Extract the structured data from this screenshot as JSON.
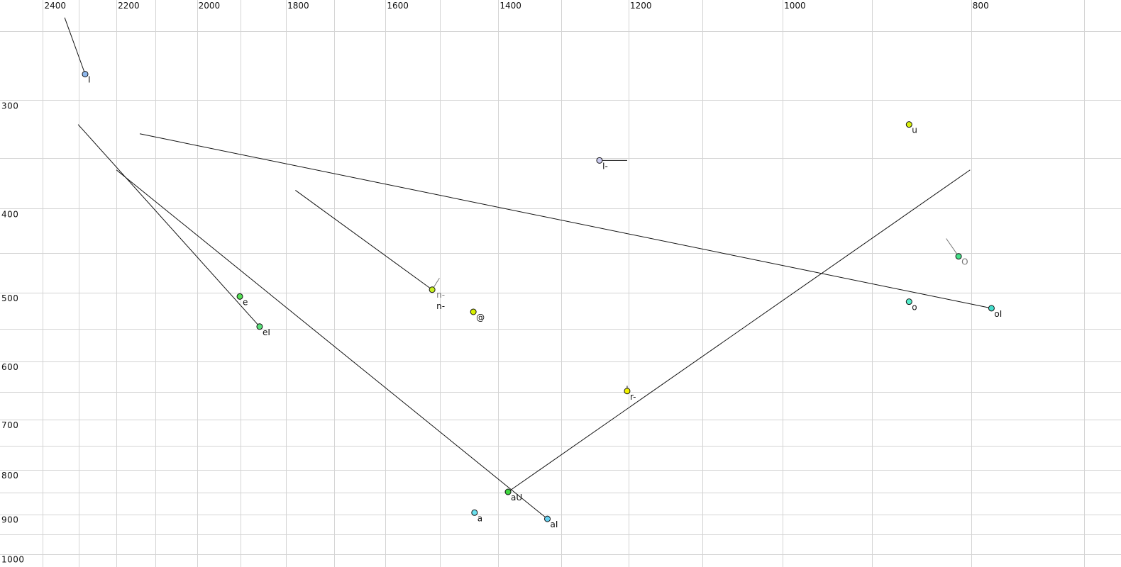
{
  "chart_data": {
    "type": "scatter",
    "title": "",
    "xlabel": "",
    "ylabel": "",
    "x_scale": "log",
    "y_scale": "log",
    "x_reversed": true,
    "xlim": [
      2525,
      670
    ],
    "ylim": [
      230,
      1035
    ],
    "grid": true,
    "x_grid": [
      2400,
      2300,
      2200,
      2100,
      2000,
      1900,
      1800,
      1700,
      1600,
      1500,
      1400,
      1300,
      1200,
      1100,
      1000,
      900,
      800,
      700
    ],
    "y_grid": [
      250,
      300,
      350,
      400,
      450,
      500,
      550,
      600,
      650,
      700,
      750,
      800,
      850,
      900,
      950,
      1000
    ],
    "x_ticks": [
      "2400",
      "2200",
      "2000",
      "1800",
      "1600",
      "1400",
      "1200",
      "1000",
      "800"
    ],
    "y_ticks": [
      "300",
      "400",
      "500",
      "600",
      "700",
      "800",
      "900",
      "1000"
    ],
    "points": [
      {
        "label": "I",
        "x": 2283,
        "y": 280,
        "color": "#8fb8ec",
        "traj": [
          2339,
          241
        ]
      },
      {
        "label": "e",
        "x": 1901,
        "y": 505,
        "color": "#55e055"
      },
      {
        "label": "eI",
        "x": 1857,
        "y": 547,
        "color": "#5ae07a",
        "traj": [
          2302,
          320
        ]
      },
      {
        "label": "n-",
        "x": 1514,
        "y": 496,
        "color": "#c8f020",
        "traj": [
          1780,
          381
        ],
        "traj_gray": [
          1501,
          481
        ],
        "label_gray": "n-"
      },
      {
        "label": "@",
        "x": 1442,
        "y": 526,
        "color": "#d8f000"
      },
      {
        "label": "a",
        "x": 1440,
        "y": 896,
        "color": "#6ae0ee"
      },
      {
        "label": "aU",
        "x": 1384,
        "y": 848,
        "color": "#40d840",
        "traj": [
          801,
          361
        ]
      },
      {
        "label": "aI",
        "x": 1321,
        "y": 911,
        "color": "#66d0f0",
        "traj": [
          2200,
          361
        ]
      },
      {
        "label": "r-",
        "x": 1202,
        "y": 649,
        "color": "#f0f000",
        "traj": [
          1202,
          640
        ]
      },
      {
        "label": "I-",
        "x": 1242,
        "y": 352,
        "color": "#ccccf0",
        "traj": [
          1202,
          352
        ]
      },
      {
        "label": "u",
        "x": 861,
        "y": 320,
        "color": "#d8f010"
      },
      {
        "label": "O",
        "x": 812,
        "y": 454,
        "color": "#44e088",
        "traj_gray": [
          824,
          433
        ],
        "gray": true
      },
      {
        "label": "o",
        "x": 861,
        "y": 512,
        "color": "#55eecc"
      },
      {
        "label": "oI",
        "x": 781,
        "y": 521,
        "color": "#44ddcc",
        "traj": [
          2140,
          328
        ]
      }
    ]
  }
}
